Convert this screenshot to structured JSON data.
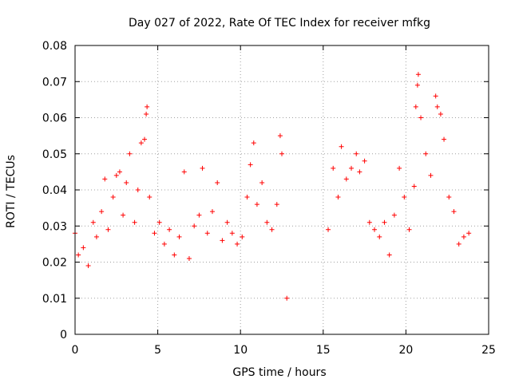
{
  "chart_data": {
    "type": "scatter",
    "title": "Day 027 of 2022, Rate Of TEC Index for receiver mfkg",
    "xlabel": "GPS time / hours",
    "ylabel": "ROTI / TECUs",
    "xlim": [
      0,
      25
    ],
    "ylim": [
      0,
      0.08
    ],
    "xticks": [
      0,
      5,
      10,
      15,
      20,
      25
    ],
    "xtick_labels": [
      "0",
      "5",
      "10",
      "15",
      "20",
      "25"
    ],
    "yticks": [
      0,
      0.01,
      0.02,
      0.03,
      0.04,
      0.05,
      0.06,
      0.07,
      0.08
    ],
    "ytick_labels": [
      "0",
      "0.01",
      "0.02",
      "0.03",
      "0.04",
      "0.05",
      "0.06",
      "0.07",
      "0.08"
    ],
    "grid": true,
    "marker": "+",
    "marker_color": "#ff0000",
    "data_gap_hours": [
      13.0,
      15.1
    ],
    "series": [
      {
        "points": [
          [
            0.0,
            0.028
          ],
          [
            0.2,
            0.022
          ],
          [
            0.5,
            0.024
          ],
          [
            0.8,
            0.019
          ],
          [
            1.1,
            0.031
          ],
          [
            1.3,
            0.027
          ],
          [
            1.6,
            0.034
          ],
          [
            1.8,
            0.043
          ],
          [
            2.0,
            0.029
          ],
          [
            2.3,
            0.038
          ],
          [
            2.5,
            0.044
          ],
          [
            2.7,
            0.045
          ],
          [
            2.9,
            0.033
          ],
          [
            3.1,
            0.042
          ],
          [
            3.3,
            0.05
          ],
          [
            3.6,
            0.031
          ],
          [
            3.8,
            0.04
          ],
          [
            4.0,
            0.053
          ],
          [
            4.2,
            0.054
          ],
          [
            4.3,
            0.061
          ],
          [
            4.35,
            0.063
          ],
          [
            4.5,
            0.038
          ],
          [
            4.8,
            0.028
          ],
          [
            5.1,
            0.031
          ],
          [
            5.4,
            0.025
          ],
          [
            5.7,
            0.029
          ],
          [
            6.0,
            0.022
          ],
          [
            6.3,
            0.027
          ],
          [
            6.6,
            0.045
          ],
          [
            6.9,
            0.021
          ],
          [
            7.2,
            0.03
          ],
          [
            7.5,
            0.033
          ],
          [
            7.7,
            0.046
          ],
          [
            8.0,
            0.028
          ],
          [
            8.3,
            0.034
          ],
          [
            8.6,
            0.042
          ],
          [
            8.9,
            0.026
          ],
          [
            9.2,
            0.031
          ],
          [
            9.5,
            0.028
          ],
          [
            9.8,
            0.025
          ],
          [
            10.1,
            0.027
          ],
          [
            10.4,
            0.038
          ],
          [
            10.6,
            0.047
          ],
          [
            10.8,
            0.053
          ],
          [
            11.0,
            0.036
          ],
          [
            11.3,
            0.042
          ],
          [
            11.6,
            0.031
          ],
          [
            11.9,
            0.029
          ],
          [
            12.2,
            0.036
          ],
          [
            12.4,
            0.055
          ],
          [
            12.5,
            0.05
          ],
          [
            12.8,
            0.01
          ],
          [
            15.3,
            0.029
          ],
          [
            15.6,
            0.046
          ],
          [
            15.9,
            0.038
          ],
          [
            16.1,
            0.052
          ],
          [
            16.4,
            0.043
          ],
          [
            16.7,
            0.046
          ],
          [
            17.0,
            0.05
          ],
          [
            17.2,
            0.045
          ],
          [
            17.5,
            0.048
          ],
          [
            17.8,
            0.031
          ],
          [
            18.1,
            0.029
          ],
          [
            18.4,
            0.027
          ],
          [
            18.7,
            0.031
          ],
          [
            19.0,
            0.022
          ],
          [
            19.3,
            0.033
          ],
          [
            19.6,
            0.046
          ],
          [
            19.9,
            0.038
          ],
          [
            20.2,
            0.029
          ],
          [
            20.5,
            0.041
          ],
          [
            20.6,
            0.063
          ],
          [
            20.7,
            0.069
          ],
          [
            20.75,
            0.072
          ],
          [
            20.9,
            0.06
          ],
          [
            21.2,
            0.05
          ],
          [
            21.5,
            0.044
          ],
          [
            21.8,
            0.066
          ],
          [
            21.9,
            0.063
          ],
          [
            22.1,
            0.061
          ],
          [
            22.3,
            0.054
          ],
          [
            22.6,
            0.038
          ],
          [
            22.9,
            0.034
          ],
          [
            23.2,
            0.025
          ],
          [
            23.5,
            0.027
          ],
          [
            23.8,
            0.028
          ]
        ]
      }
    ]
  }
}
